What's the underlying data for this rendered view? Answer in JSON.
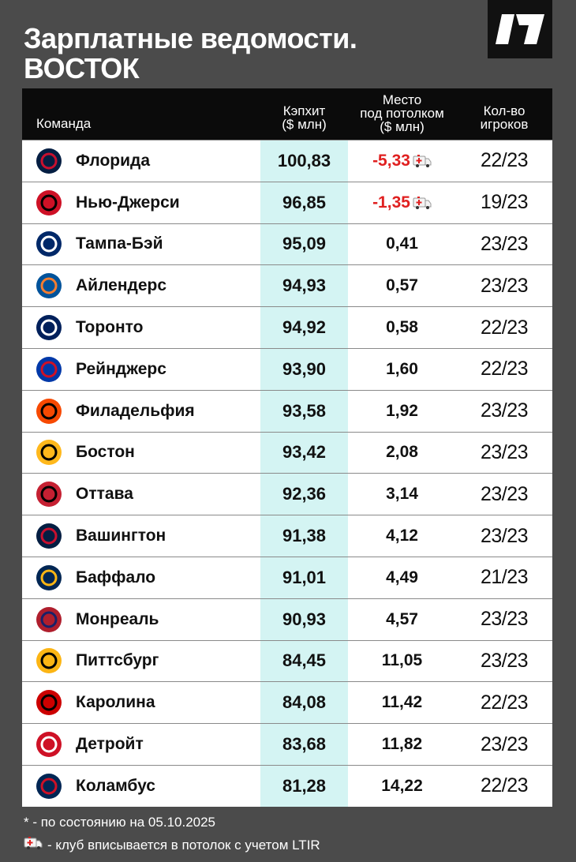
{
  "header": {
    "title": "Зарплатные ведомости.\nВОСТОК"
  },
  "table": {
    "columns": [
      "Команда",
      "Кэпхит\n($ млн)",
      "Место\nпод потолком\n($ млн)",
      "Кол-во\nигроков"
    ],
    "rows": [
      {
        "team": "Флорида",
        "cap": "100,83",
        "space": "-5,33",
        "players": "22/23",
        "ltir": true
      },
      {
        "team": "Нью-Джерси",
        "cap": "96,85",
        "space": "-1,35",
        "players": "19/23",
        "ltir": true
      },
      {
        "team": "Тампа-Бэй",
        "cap": "95,09",
        "space": "0,41",
        "players": "23/23",
        "ltir": false
      },
      {
        "team": "Айлендерс",
        "cap": "94,93",
        "space": "0,57",
        "players": "23/23",
        "ltir": false
      },
      {
        "team": "Торонто",
        "cap": "94,92",
        "space": "0,58",
        "players": "22/23",
        "ltir": false
      },
      {
        "team": "Рейнджерс",
        "cap": "93,90",
        "space": "1,60",
        "players": "22/23",
        "ltir": false
      },
      {
        "team": "Филадельфия",
        "cap": "93,58",
        "space": "1,92",
        "players": "23/23",
        "ltir": false
      },
      {
        "team": "Бостон",
        "cap": "93,42",
        "space": "2,08",
        "players": "23/23",
        "ltir": false
      },
      {
        "team": "Оттава",
        "cap": "92,36",
        "space": "3,14",
        "players": "23/23",
        "ltir": false
      },
      {
        "team": "Вашингтон",
        "cap": "91,38",
        "space": "4,12",
        "players": "23/23",
        "ltir": false
      },
      {
        "team": "Баффало",
        "cap": "91,01",
        "space": "4,49",
        "players": "21/23",
        "ltir": false
      },
      {
        "team": "Монреаль",
        "cap": "90,93",
        "space": "4,57",
        "players": "23/23",
        "ltir": false
      },
      {
        "team": "Питтсбург",
        "cap": "84,45",
        "space": "11,05",
        "players": "23/23",
        "ltir": false
      },
      {
        "team": "Каролина",
        "cap": "84,08",
        "space": "11,42",
        "players": "22/23",
        "ltir": false
      },
      {
        "team": "Детройт",
        "cap": "83,68",
        "space": "11,82",
        "players": "23/23",
        "ltir": false
      },
      {
        "team": "Коламбус",
        "cap": "81,28",
        "space": "14,22",
        "players": "22/23",
        "ltir": false
      }
    ]
  },
  "footnotes": [
    "* - по состоянию на 05.10.2025",
    "- клуб вписывается в потолок с учетом LTIR"
  ]
}
